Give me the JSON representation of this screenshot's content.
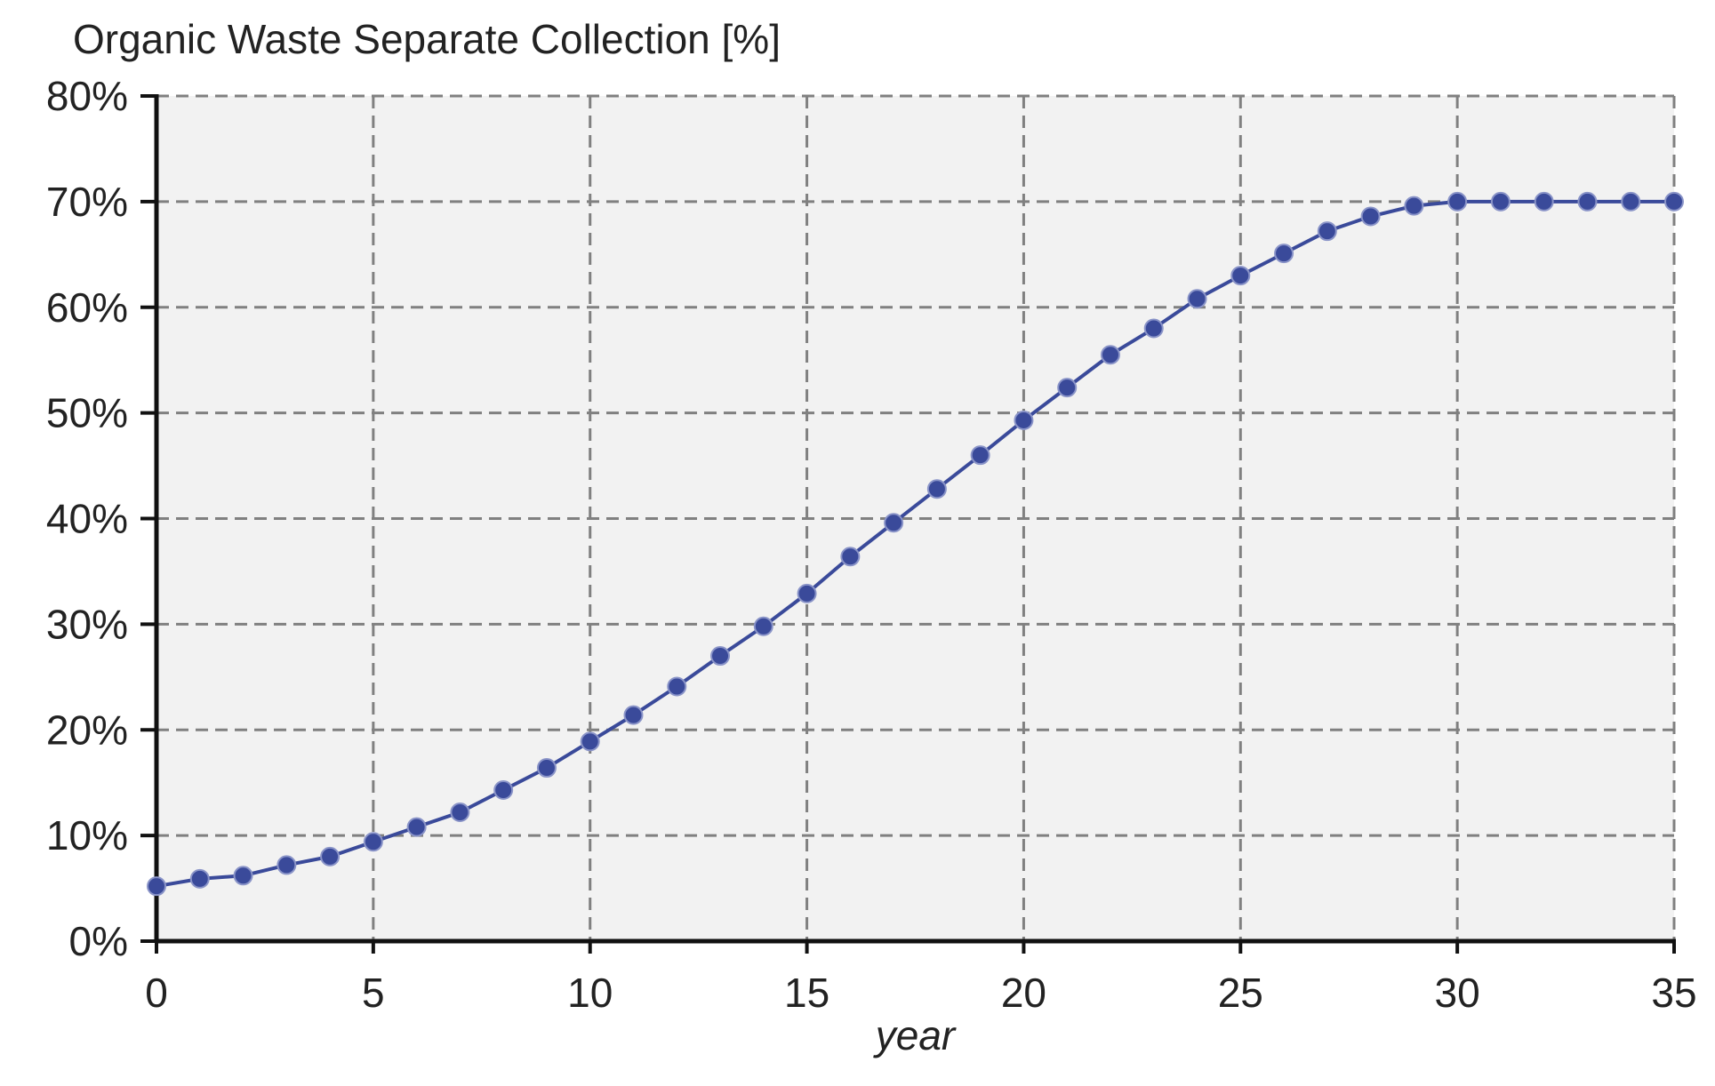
{
  "chart_data": {
    "type": "line",
    "title": "Organic Waste Separate Collection [%]",
    "xlabel": "year",
    "ylabel": "",
    "xlim": [
      0,
      35
    ],
    "ylim": [
      0,
      80
    ],
    "x_ticks": [
      0,
      5,
      10,
      15,
      20,
      25,
      30,
      35
    ],
    "x_tick_labels": [
      "0",
      "5",
      "10",
      "15",
      "20",
      "25",
      "30",
      "35"
    ],
    "y_ticks": [
      0,
      10,
      20,
      30,
      40,
      50,
      60,
      70,
      80
    ],
    "y_tick_labels": [
      "0%",
      "10%",
      "20%",
      "30%",
      "40%",
      "50%",
      "60%",
      "70%",
      "80%"
    ],
    "grid": true,
    "grid_style": "dashed",
    "legend": "none",
    "colors": {
      "series": "#3a4a9a",
      "plot_background": "#f2f2f2",
      "grid": "#808080",
      "axis": "#111111"
    },
    "x": [
      0,
      1,
      2,
      3,
      4,
      5,
      6,
      7,
      8,
      9,
      10,
      11,
      12,
      13,
      14,
      15,
      16,
      17,
      18,
      19,
      20,
      21,
      22,
      23,
      24,
      25,
      26,
      27,
      28,
      29,
      30,
      31,
      32,
      33,
      34,
      35
    ],
    "series": [
      {
        "values": [
          5.2,
          5.9,
          6.2,
          7.2,
          8.0,
          9.4,
          10.8,
          12.2,
          14.3,
          16.4,
          18.9,
          21.4,
          24.1,
          27.0,
          29.8,
          32.9,
          36.4,
          39.6,
          42.8,
          46.0,
          49.3,
          52.4,
          55.5,
          58.0,
          60.8,
          63.0,
          65.1,
          67.2,
          68.6,
          69.6,
          70.0,
          70.0,
          70.0,
          70.0,
          70.0,
          70.0
        ]
      }
    ]
  }
}
